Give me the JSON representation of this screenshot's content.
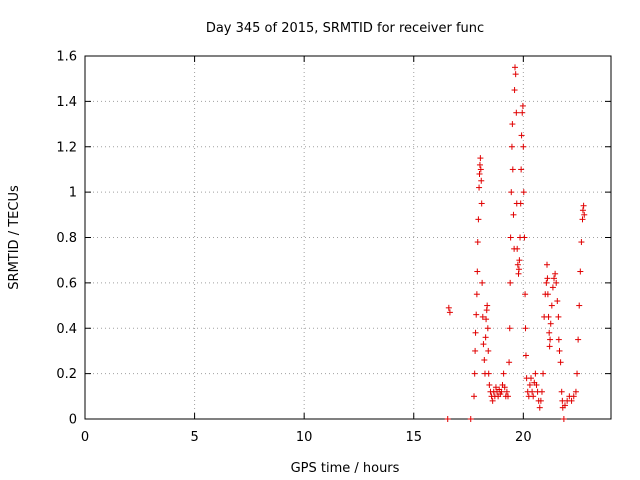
{
  "chart_data": {
    "type": "scatter",
    "title": "Day 345 of 2015, SRMTID for receiver func",
    "xlabel": "GPS time / hours",
    "ylabel": "SRMTID / TECUs",
    "xlim": [
      0,
      24
    ],
    "ylim": [
      0,
      1.6
    ],
    "xticks": [
      0,
      5,
      10,
      15,
      20
    ],
    "xtick_labels": [
      "0",
      "5",
      "10",
      "15",
      "20"
    ],
    "yticks": [
      0,
      0.2,
      0.4,
      0.6,
      0.8,
      1.0,
      1.2,
      1.4,
      1.6
    ],
    "ytick_labels": [
      "0",
      "0.2",
      "0.4",
      "0.6",
      "0.8",
      "1",
      "1.2",
      "1.4",
      "1.6"
    ],
    "grid": true,
    "marker": "+",
    "color": "#e00000",
    "series": [
      {
        "name": "SRMTID",
        "points": [
          [
            16.55,
            0.0
          ],
          [
            16.6,
            0.49
          ],
          [
            16.65,
            0.47
          ],
          [
            17.6,
            0.0
          ],
          [
            17.75,
            0.1
          ],
          [
            17.78,
            0.2
          ],
          [
            17.8,
            0.3
          ],
          [
            17.82,
            0.38
          ],
          [
            17.85,
            0.46
          ],
          [
            17.88,
            0.55
          ],
          [
            17.9,
            0.65
          ],
          [
            17.92,
            0.78
          ],
          [
            17.95,
            0.88
          ],
          [
            17.98,
            1.02
          ],
          [
            18.0,
            1.08
          ],
          [
            18.02,
            1.12
          ],
          [
            18.04,
            1.15
          ],
          [
            18.06,
            1.1
          ],
          [
            18.08,
            1.05
          ],
          [
            18.1,
            0.95
          ],
          [
            18.12,
            0.6
          ],
          [
            18.15,
            0.45
          ],
          [
            18.18,
            0.33
          ],
          [
            18.22,
            0.26
          ],
          [
            18.25,
            0.2
          ],
          [
            18.28,
            0.36
          ],
          [
            18.3,
            0.44
          ],
          [
            18.33,
            0.48
          ],
          [
            18.35,
            0.5
          ],
          [
            18.38,
            0.4
          ],
          [
            18.4,
            0.3
          ],
          [
            18.42,
            0.2
          ],
          [
            18.45,
            0.15
          ],
          [
            18.5,
            0.12
          ],
          [
            18.55,
            0.1
          ],
          [
            18.6,
            0.08
          ],
          [
            18.65,
            0.12
          ],
          [
            18.7,
            0.1
          ],
          [
            18.75,
            0.14
          ],
          [
            18.8,
            0.12
          ],
          [
            18.85,
            0.1
          ],
          [
            18.9,
            0.13
          ],
          [
            18.95,
            0.11
          ],
          [
            19.0,
            0.12
          ],
          [
            19.05,
            0.15
          ],
          [
            19.1,
            0.2
          ],
          [
            19.15,
            0.14
          ],
          [
            19.2,
            0.1
          ],
          [
            19.25,
            0.12
          ],
          [
            19.3,
            0.1
          ],
          [
            19.35,
            0.25
          ],
          [
            19.38,
            0.4
          ],
          [
            19.4,
            0.6
          ],
          [
            19.42,
            0.8
          ],
          [
            19.45,
            1.0
          ],
          [
            19.48,
            1.2
          ],
          [
            19.5,
            1.3
          ],
          [
            19.52,
            1.1
          ],
          [
            19.55,
            0.9
          ],
          [
            19.58,
            0.75
          ],
          [
            19.6,
            1.45
          ],
          [
            19.62,
            1.55
          ],
          [
            19.65,
            1.52
          ],
          [
            19.68,
            1.35
          ],
          [
            19.7,
            0.95
          ],
          [
            19.72,
            0.75
          ],
          [
            19.75,
            0.68
          ],
          [
            19.78,
            0.64
          ],
          [
            19.8,
            0.66
          ],
          [
            19.82,
            0.7
          ],
          [
            19.85,
            0.8
          ],
          [
            19.88,
            0.95
          ],
          [
            19.9,
            1.1
          ],
          [
            19.92,
            1.25
          ],
          [
            19.95,
            1.35
          ],
          [
            19.98,
            1.38
          ],
          [
            20.0,
            1.2
          ],
          [
            20.02,
            1.0
          ],
          [
            20.05,
            0.8
          ],
          [
            20.08,
            0.55
          ],
          [
            20.1,
            0.4
          ],
          [
            20.12,
            0.28
          ],
          [
            20.15,
            0.18
          ],
          [
            20.2,
            0.12
          ],
          [
            20.25,
            0.1
          ],
          [
            20.3,
            0.15
          ],
          [
            20.35,
            0.18
          ],
          [
            20.4,
            0.12
          ],
          [
            20.45,
            0.1
          ],
          [
            20.5,
            0.16
          ],
          [
            20.55,
            0.2
          ],
          [
            20.6,
            0.15
          ],
          [
            20.65,
            0.12
          ],
          [
            20.7,
            0.08
          ],
          [
            20.75,
            0.05
          ],
          [
            20.8,
            0.08
          ],
          [
            20.85,
            0.12
          ],
          [
            20.9,
            0.2
          ],
          [
            20.95,
            0.45
          ],
          [
            21.0,
            0.55
          ],
          [
            21.05,
            0.6
          ],
          [
            21.08,
            0.68
          ],
          [
            21.1,
            0.62
          ],
          [
            21.12,
            0.55
          ],
          [
            21.15,
            0.45
          ],
          [
            21.18,
            0.38
          ],
          [
            21.2,
            0.32
          ],
          [
            21.22,
            0.35
          ],
          [
            21.25,
            0.42
          ],
          [
            21.3,
            0.5
          ],
          [
            21.35,
            0.58
          ],
          [
            21.4,
            0.62
          ],
          [
            21.45,
            0.64
          ],
          [
            21.5,
            0.6
          ],
          [
            21.55,
            0.52
          ],
          [
            21.6,
            0.45
          ],
          [
            21.62,
            0.35
          ],
          [
            21.65,
            0.3
          ],
          [
            21.7,
            0.25
          ],
          [
            21.75,
            0.12
          ],
          [
            21.78,
            0.08
          ],
          [
            21.8,
            0.05
          ],
          [
            21.85,
            0.0
          ],
          [
            21.9,
            0.06
          ],
          [
            22.0,
            0.08
          ],
          [
            22.1,
            0.1
          ],
          [
            22.2,
            0.08
          ],
          [
            22.3,
            0.1
          ],
          [
            22.4,
            0.12
          ],
          [
            22.45,
            0.2
          ],
          [
            22.5,
            0.35
          ],
          [
            22.55,
            0.5
          ],
          [
            22.6,
            0.65
          ],
          [
            22.65,
            0.78
          ],
          [
            22.7,
            0.88
          ],
          [
            22.72,
            0.92
          ],
          [
            22.75,
            0.94
          ],
          [
            22.78,
            0.9
          ]
        ]
      }
    ]
  }
}
